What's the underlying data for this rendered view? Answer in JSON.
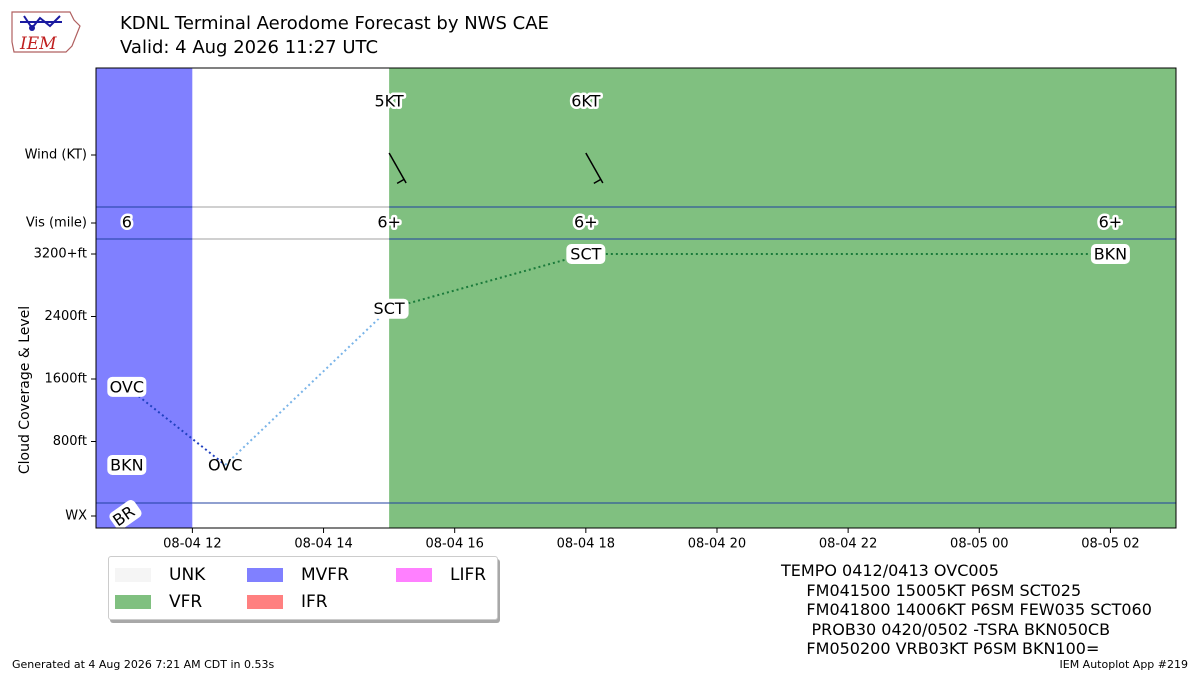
{
  "title": "KDNL Terminal Aerodome Forecast by NWS CAE",
  "subtitle": "Valid: 4 Aug 2026 11:27 UTC",
  "logo_text": "IEM",
  "colors": {
    "MVFR": "#8080ff",
    "VFR": "#80c080",
    "UNK": "#f5f5f5",
    "IFR": "#ff8080",
    "LIFR": "#ff80ff",
    "ovc_line": "#2040c0",
    "first_link": "#7ab4e8",
    "sct_line": "#1a7a3a"
  },
  "chart_data": {
    "type": "timeline",
    "x_unit": "hours since 2026-08-04 00:00 UTC",
    "x_range": [
      10.53,
      27.0
    ],
    "x_ticks": [
      {
        "x": 12,
        "label": "08-04 12"
      },
      {
        "x": 14,
        "label": "08-04 14"
      },
      {
        "x": 16,
        "label": "08-04 16"
      },
      {
        "x": 18,
        "label": "08-04 18"
      },
      {
        "x": 20,
        "label": "08-04 20"
      },
      {
        "x": 22,
        "label": "08-04 22"
      },
      {
        "x": 24,
        "label": "08-05 00"
      },
      {
        "x": 26,
        "label": "08-05 02"
      }
    ],
    "ylabel": "Cloud Coverage & Level",
    "cloud_ticks": [
      {
        "ft": 800,
        "label": "800ft"
      },
      {
        "ft": 1600,
        "label": "1600ft"
      },
      {
        "ft": 2400,
        "label": "2400ft"
      },
      {
        "ft": 3200,
        "label": "3200+ft"
      }
    ],
    "row_labels": {
      "wind": "Wind (KT)",
      "vis": "Vis (mile)",
      "wx": "WX"
    },
    "categories": [
      {
        "start": 10.53,
        "end": 12.0,
        "cat": "MVFR"
      },
      {
        "start": 12.0,
        "end": 15.0,
        "cat": "UNK"
      },
      {
        "start": 15.0,
        "end": 27.0,
        "cat": "VFR"
      }
    ],
    "wind": [
      {
        "x": 15.0,
        "speed_label": "5KT",
        "dir": 150,
        "speed": 5
      },
      {
        "x": 18.0,
        "speed_label": "6KT",
        "dir": 140,
        "speed": 6
      }
    ],
    "visibility": [
      {
        "x": 11.0,
        "label": "6"
      },
      {
        "x": 15.0,
        "label": "6+"
      },
      {
        "x": 18.0,
        "label": "6+"
      },
      {
        "x": 26.0,
        "label": "6+"
      }
    ],
    "clouds": [
      {
        "x": 11.0,
        "ft": 500,
        "label": "BKN",
        "boxed": true
      },
      {
        "x": 11.0,
        "ft": 1500,
        "label": "OVC",
        "boxed": true
      },
      {
        "x": 12.5,
        "ft": 500,
        "label": "OVC",
        "boxed": false
      },
      {
        "x": 15.0,
        "ft": 2500,
        "label": "SCT",
        "boxed": true
      },
      {
        "x": 18.0,
        "ft": 3200,
        "label": "SCT",
        "boxed": true
      },
      {
        "x": 26.0,
        "ft": 3200,
        "label": "BKN",
        "boxed": true
      }
    ],
    "weather": [
      {
        "x": 11.0,
        "label": "BR"
      }
    ]
  },
  "legend": [
    {
      "label": "UNK",
      "cat": "UNK"
    },
    {
      "label": "MVFR",
      "cat": "MVFR"
    },
    {
      "label": "LIFR",
      "cat": "LIFR"
    },
    {
      "label": "VFR",
      "cat": "VFR"
    },
    {
      "label": "IFR",
      "cat": "IFR"
    }
  ],
  "taf_lines": [
    "TEMPO 0412/0413 OVC005",
    "     FM041500 15005KT P6SM SCT025",
    "     FM041800 14006KT P6SM FEW035 SCT060",
    "      PROB30 0420/0502 -TSRA BKN050CB",
    "     FM050200 VRB03KT P6SM BKN100="
  ],
  "footer_left": "Generated at 4 Aug 2026 7:21 AM CDT in 0.53s",
  "footer_right": "IEM Autoplot App #219"
}
